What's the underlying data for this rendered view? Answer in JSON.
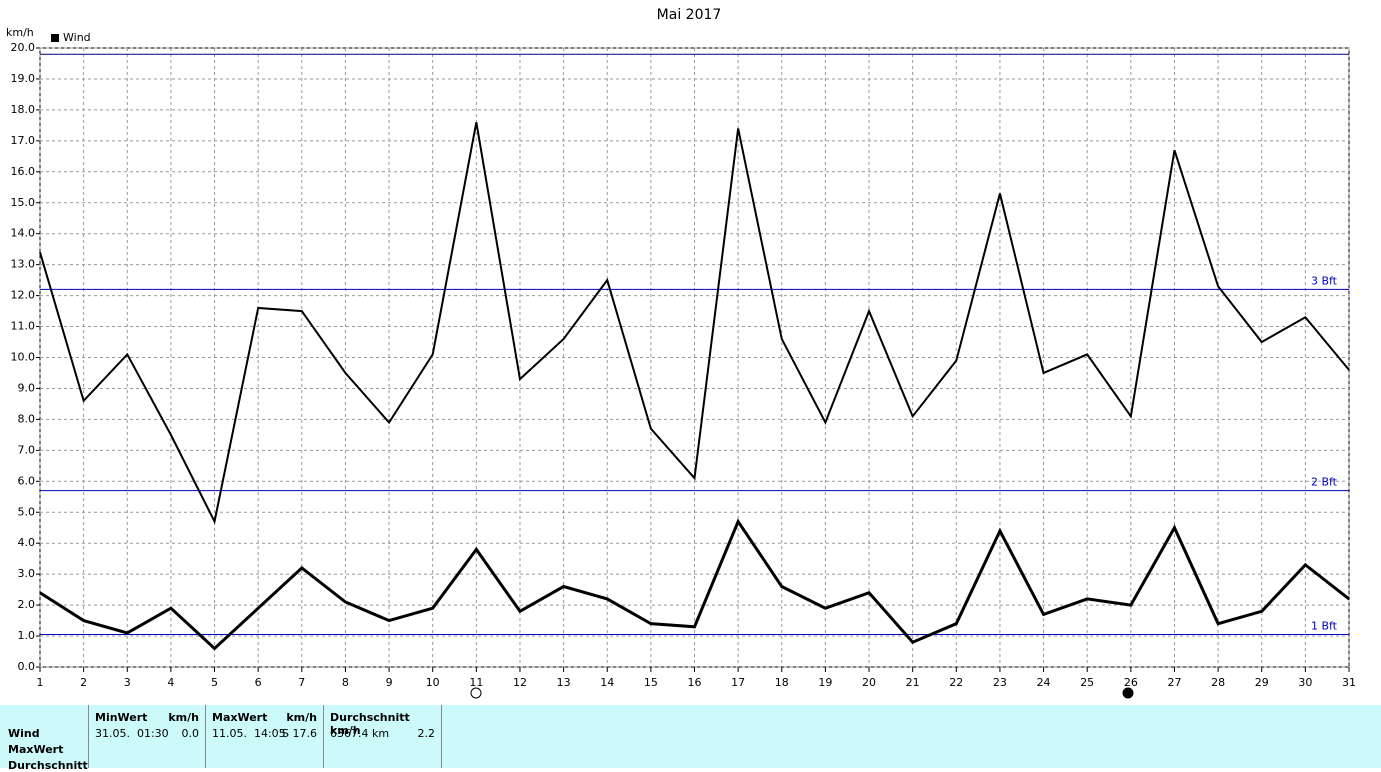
{
  "chart_data": {
    "type": "line",
    "title": "Mai 2017",
    "y_label": "km/h",
    "x": [
      1,
      2,
      3,
      4,
      5,
      6,
      7,
      8,
      9,
      10,
      11,
      12,
      13,
      14,
      15,
      16,
      17,
      18,
      19,
      20,
      21,
      22,
      23,
      24,
      25,
      26,
      27,
      28,
      29,
      30,
      31
    ],
    "series": [
      {
        "name": "Wind",
        "color": "#000000",
        "values": [
          13.4,
          8.6,
          10.1,
          7.5,
          4.7,
          11.6,
          11.5,
          9.5,
          7.9,
          10.1,
          17.6,
          9.3,
          10.6,
          12.5,
          7.7,
          6.1,
          17.4,
          10.6,
          7.9,
          11.5,
          8.1,
          9.9,
          15.3,
          9.5,
          10.1,
          8.1,
          16.7,
          12.3,
          10.5,
          11.3,
          9.6
        ]
      },
      {
        "color": "#000000",
        "values": [
          2.4,
          1.5,
          1.1,
          1.9,
          0.6,
          1.9,
          3.2,
          2.1,
          1.5,
          1.9,
          3.8,
          1.8,
          2.6,
          2.2,
          1.4,
          1.3,
          4.7,
          2.6,
          1.9,
          2.4,
          0.8,
          1.4,
          4.4,
          1.7,
          2.2,
          2.0,
          4.5,
          1.4,
          1.8,
          3.3,
          2.2
        ]
      }
    ],
    "xlim": [
      1,
      31
    ],
    "xticks": [
      1,
      2,
      3,
      4,
      5,
      6,
      7,
      8,
      9,
      10,
      11,
      12,
      13,
      14,
      15,
      16,
      17,
      18,
      19,
      20,
      21,
      22,
      23,
      24,
      25,
      26,
      27,
      28,
      29,
      30,
      31
    ],
    "ylim": [
      0,
      20
    ],
    "yticks": [
      {
        "value": 0,
        "label": "0.0"
      },
      {
        "value": 1,
        "label": "1.0"
      },
      {
        "value": 2,
        "label": "2.0"
      },
      {
        "value": 3,
        "label": "3.0"
      },
      {
        "value": 4,
        "label": "4.0"
      },
      {
        "value": 5,
        "label": "5.0"
      },
      {
        "value": 6,
        "label": "6.0"
      },
      {
        "value": 7,
        "label": "7.0"
      },
      {
        "value": 8,
        "label": "8.0"
      },
      {
        "value": 9,
        "label": "9.0"
      },
      {
        "value": 10,
        "label": "10.0"
      },
      {
        "value": 11,
        "label": "11.0"
      },
      {
        "value": 12,
        "label": "12.0"
      },
      {
        "value": 13,
        "label": "13.0"
      },
      {
        "value": 14,
        "label": "14.0"
      },
      {
        "value": 15,
        "label": "15.0"
      },
      {
        "value": 16,
        "label": "16.0"
      },
      {
        "value": 17,
        "label": "17.0"
      },
      {
        "value": 18,
        "label": "18.0"
      },
      {
        "value": 19,
        "label": "19.0"
      },
      {
        "value": 20,
        "label": "20.0"
      }
    ],
    "grid": true,
    "reference_lines": [
      {
        "value": 19.8,
        "color": "#000080"
      },
      {
        "value": 12.2,
        "label": "3 Bft",
        "color": "#0000c0"
      },
      {
        "value": 5.7,
        "label": "2 Bft",
        "color": "#0000c0"
      },
      {
        "value": 1.05,
        "label": "1 Bft",
        "color": "#0000c0"
      }
    ]
  },
  "stats": {
    "row_labels": [
      "Wind",
      "MaxWert",
      "Durchschnitt"
    ],
    "columns": [
      {
        "header": "MinWert",
        "unit": "km/h",
        "date": "31.05.  01:30",
        "value": "0.0"
      },
      {
        "header": "MaxWert",
        "unit": "km/h",
        "date": "11.05.  14:05",
        "value": "S 17.6"
      },
      {
        "header": "Durchschnitt km/h",
        "date": "6367.4 km",
        "value": "2.2"
      }
    ]
  }
}
